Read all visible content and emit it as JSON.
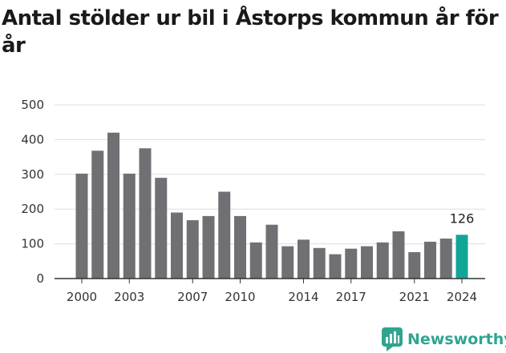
{
  "title": "Antal stölder ur bil i Åstorps kommun år för år",
  "brand": {
    "name": "Newsworthy",
    "icon": "newsworthy-logo-icon",
    "color": "#2fa58f"
  },
  "colors": {
    "bar": "#707074",
    "highlight": "#12a597",
    "gridline": "#dddddd",
    "axis": "#333333"
  },
  "chart_data": {
    "type": "bar",
    "categories": [
      "2000",
      "2001",
      "2002",
      "2003",
      "2004",
      "2005",
      "2006",
      "2007",
      "2008",
      "2009",
      "2010",
      "2011",
      "2012",
      "2013",
      "2014",
      "2015",
      "2016",
      "2017",
      "2018",
      "2019",
      "2020",
      "2021",
      "2022",
      "2023",
      "2024"
    ],
    "values": [
      302,
      368,
      420,
      302,
      375,
      290,
      190,
      168,
      180,
      250,
      180,
      104,
      155,
      93,
      112,
      88,
      70,
      86,
      93,
      104,
      136,
      76,
      106,
      115,
      126
    ],
    "highlight_index": 24,
    "data_labels": [
      {
        "index": 24,
        "text": "126"
      }
    ],
    "x_tick_labels": [
      "2000",
      "2003",
      "2007",
      "2010",
      "2014",
      "2017",
      "2021",
      "2024"
    ],
    "y_ticks": [
      0,
      100,
      200,
      300,
      400,
      500
    ],
    "ylim": [
      0,
      500
    ],
    "xlabel": "",
    "ylabel": "",
    "grid": true,
    "legend": "none"
  }
}
